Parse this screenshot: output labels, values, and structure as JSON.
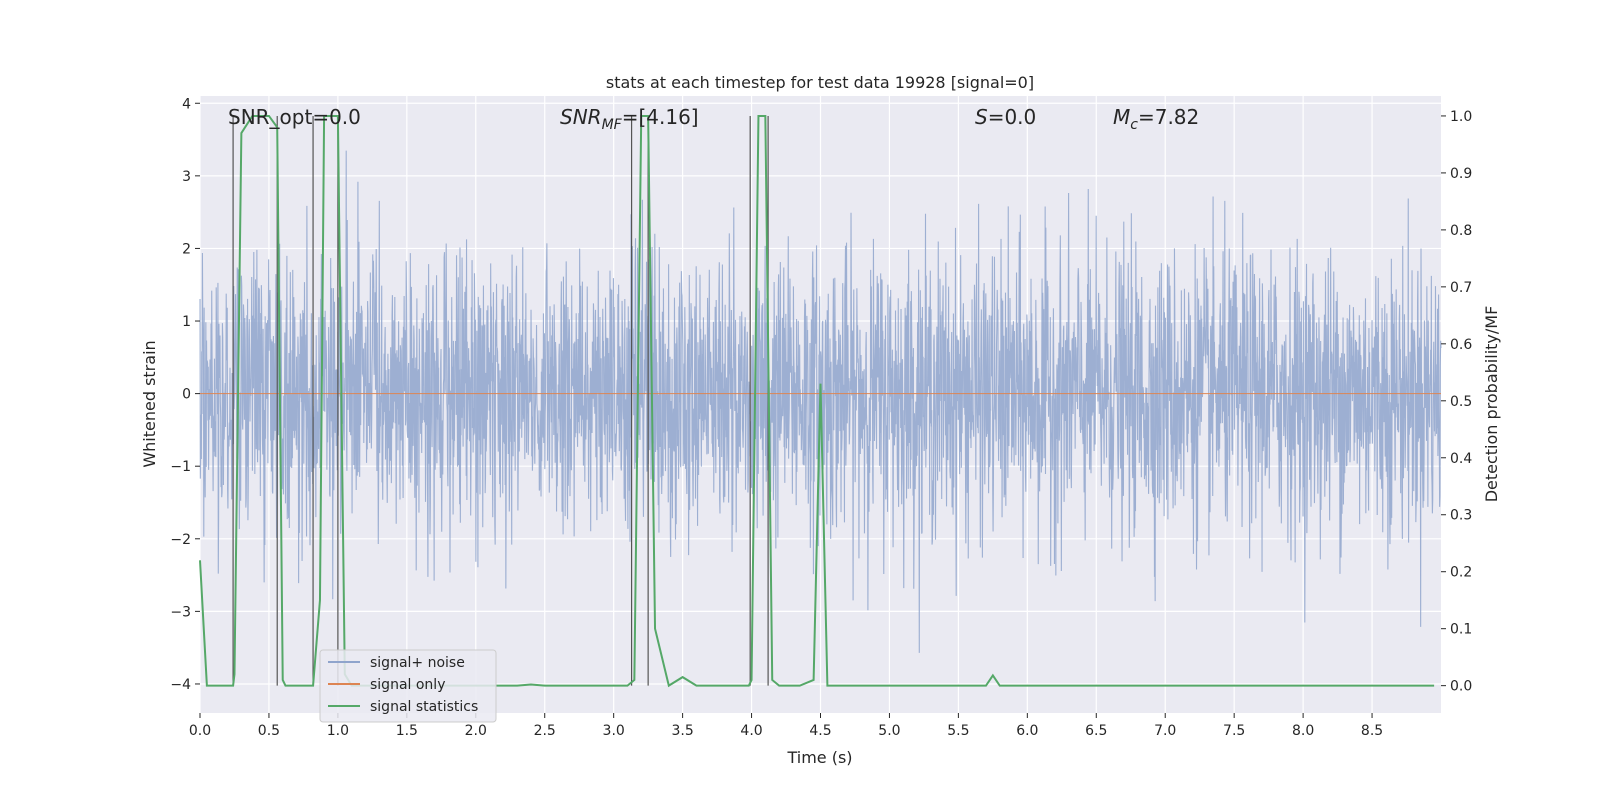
{
  "chart_data": {
    "type": "line",
    "title": "stats at each timestep for test data 19928 [signal=0]",
    "xlabel": "Time (s)",
    "ylabel_left": "Whitened strain",
    "ylabel_right": "Detection probability/MF",
    "xlim": [
      0.0,
      9.0
    ],
    "ylim_left": [
      -4.4,
      4.1
    ],
    "ylim_right": [
      -0.048,
      1.035
    ],
    "x_ticks": [
      "0.0",
      "0.5",
      "1.0",
      "1.5",
      "2.0",
      "2.5",
      "3.0",
      "3.5",
      "4.0",
      "4.5",
      "5.0",
      "5.5",
      "6.0",
      "6.5",
      "7.0",
      "7.5",
      "8.0",
      "8.5"
    ],
    "y_ticks_left": [
      "4",
      "3",
      "2",
      "1",
      "0",
      "−1",
      "−2",
      "−3",
      "−4"
    ],
    "y_ticks_left_values": [
      4,
      3,
      2,
      1,
      0,
      -1,
      -2,
      -3,
      -4
    ],
    "y_ticks_right": [
      "1.0",
      "0.9",
      "0.8",
      "0.7",
      "0.6",
      "0.5",
      "0.4",
      "0.3",
      "0.2",
      "0.1",
      "0.0"
    ],
    "y_ticks_right_values": [
      1.0,
      0.9,
      0.8,
      0.7,
      0.6,
      0.5,
      0.4,
      0.3,
      0.2,
      0.1,
      0.0
    ],
    "annotations": {
      "snr_opt": "SNR_opt=0.0",
      "snr_mf_base": "SNR",
      "snr_mf_sub": "MF",
      "snr_mf_value": "=[4.16]",
      "s_label": "S",
      "s_value": "=0.0",
      "mc_base": "M",
      "mc_sub": "c",
      "mc_value": "=7.82"
    },
    "legend": [
      {
        "label": "signal+ noise",
        "color": "#8fa4cc"
      },
      {
        "label": "signal only",
        "color": "#dd8452"
      },
      {
        "label": "signal statistics",
        "color": "#55a868"
      }
    ],
    "series": [
      {
        "name": "signal+ noise",
        "axis": "left",
        "description": "whitened strain noise, roughly Gaussian with sd ~1, x from 0 to 9 s",
        "color": "#8fa4cc"
      },
      {
        "name": "signal only",
        "axis": "left",
        "x": [
          0.0,
          9.0
        ],
        "y": [
          0.0,
          0.0
        ],
        "color": "#dd8452"
      },
      {
        "name": "signal statistics",
        "axis": "right",
        "color": "#55a868",
        "x": [
          0.0,
          0.05,
          0.24,
          0.25,
          0.3,
          0.38,
          0.5,
          0.56,
          0.6,
          0.62,
          0.75,
          0.82,
          0.87,
          0.9,
          1.0,
          1.05,
          1.1,
          1.2,
          1.4,
          2.3,
          2.4,
          2.5,
          3.1,
          3.15,
          3.2,
          3.25,
          3.3,
          3.4,
          3.5,
          3.6,
          3.98,
          4.0,
          4.05,
          4.1,
          4.15,
          4.2,
          4.35,
          4.45,
          4.5,
          4.55,
          5.6,
          5.7,
          5.75,
          5.8,
          8.95
        ],
        "y": [
          0.22,
          0.0,
          0.0,
          0.02,
          0.97,
          1.0,
          1.0,
          0.98,
          0.01,
          0.0,
          0.0,
          0.0,
          0.15,
          1.0,
          1.0,
          0.02,
          0.0,
          0.0,
          0.0,
          0.0,
          0.002,
          0.0,
          0.0,
          0.01,
          1.0,
          1.0,
          0.1,
          0.0,
          0.015,
          0.0,
          0.0,
          0.01,
          1.0,
          1.0,
          0.01,
          0.0,
          0.0,
          0.01,
          0.53,
          0.0,
          0.0,
          0.0,
          0.018,
          0.0,
          0.0
        ]
      }
    ],
    "vertical_markers": [
      0.24,
      0.56,
      0.82,
      1.0,
      3.13,
      3.25,
      3.99,
      4.12
    ]
  }
}
